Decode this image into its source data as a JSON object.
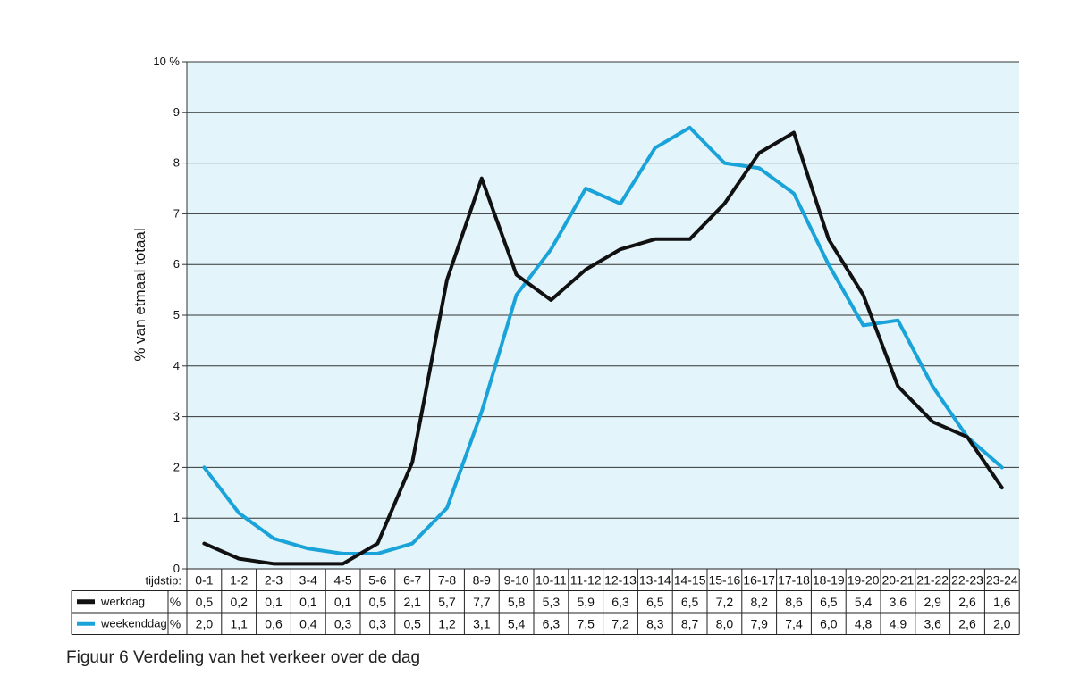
{
  "caption": "Figuur 6 Verdeling van het verkeer over de dag",
  "chart_data": {
    "type": "line",
    "ylabel": "% van etmaal totaal",
    "ylim": [
      0,
      10
    ],
    "yticks": [
      "0",
      "1",
      "2",
      "3",
      "4",
      "5",
      "6",
      "7",
      "8",
      "9",
      "10 %"
    ],
    "grid": true,
    "xlabel_prefix": "tijdstip:",
    "unit_label": "%",
    "categories": [
      "0-1",
      "1-2",
      "2-3",
      "3-4",
      "4-5",
      "5-6",
      "6-7",
      "7-8",
      "8-9",
      "9-10",
      "10-11",
      "11-12",
      "12-13",
      "13-14",
      "14-15",
      "15-16",
      "16-17",
      "17-18",
      "18-19",
      "19-20",
      "20-21",
      "21-22",
      "22-23",
      "23-24"
    ],
    "series": [
      {
        "name": "werkdag",
        "color": "#111111",
        "values": [
          0.5,
          0.2,
          0.1,
          0.1,
          0.1,
          0.5,
          2.1,
          5.7,
          7.7,
          5.8,
          5.3,
          5.9,
          6.3,
          6.5,
          6.5,
          7.2,
          8.2,
          8.6,
          6.5,
          5.4,
          3.6,
          2.9,
          2.6,
          1.6
        ],
        "labels": [
          "0,5",
          "0,2",
          "0,1",
          "0,1",
          "0,1",
          "0,5",
          "2,1",
          "5,7",
          "7,7",
          "5,8",
          "5,3",
          "5,9",
          "6,3",
          "6,5",
          "6,5",
          "7,2",
          "8,2",
          "8,6",
          "6,5",
          "5,4",
          "3,6",
          "2,9",
          "2,6",
          "1,6"
        ]
      },
      {
        "name": "weekenddag",
        "color": "#1aa3d9",
        "values": [
          2.0,
          1.1,
          0.6,
          0.4,
          0.3,
          0.3,
          0.5,
          1.2,
          3.1,
          5.4,
          6.3,
          7.5,
          7.2,
          8.3,
          8.7,
          8.0,
          7.9,
          7.4,
          6.0,
          4.8,
          4.9,
          3.6,
          2.6,
          2.0
        ],
        "labels": [
          "2,0",
          "1,1",
          "0,6",
          "0,4",
          "0,3",
          "0,3",
          "0,5",
          "1,2",
          "3,1",
          "5,4",
          "6,3",
          "7,5",
          "7,2",
          "8,3",
          "8,7",
          "8,0",
          "7,9",
          "7,4",
          "6,0",
          "4,8",
          "4,9",
          "3,6",
          "2,6",
          "2,0"
        ]
      }
    ],
    "colors": {
      "plot_background": "#e3f4fa",
      "grid": "#333333"
    }
  }
}
